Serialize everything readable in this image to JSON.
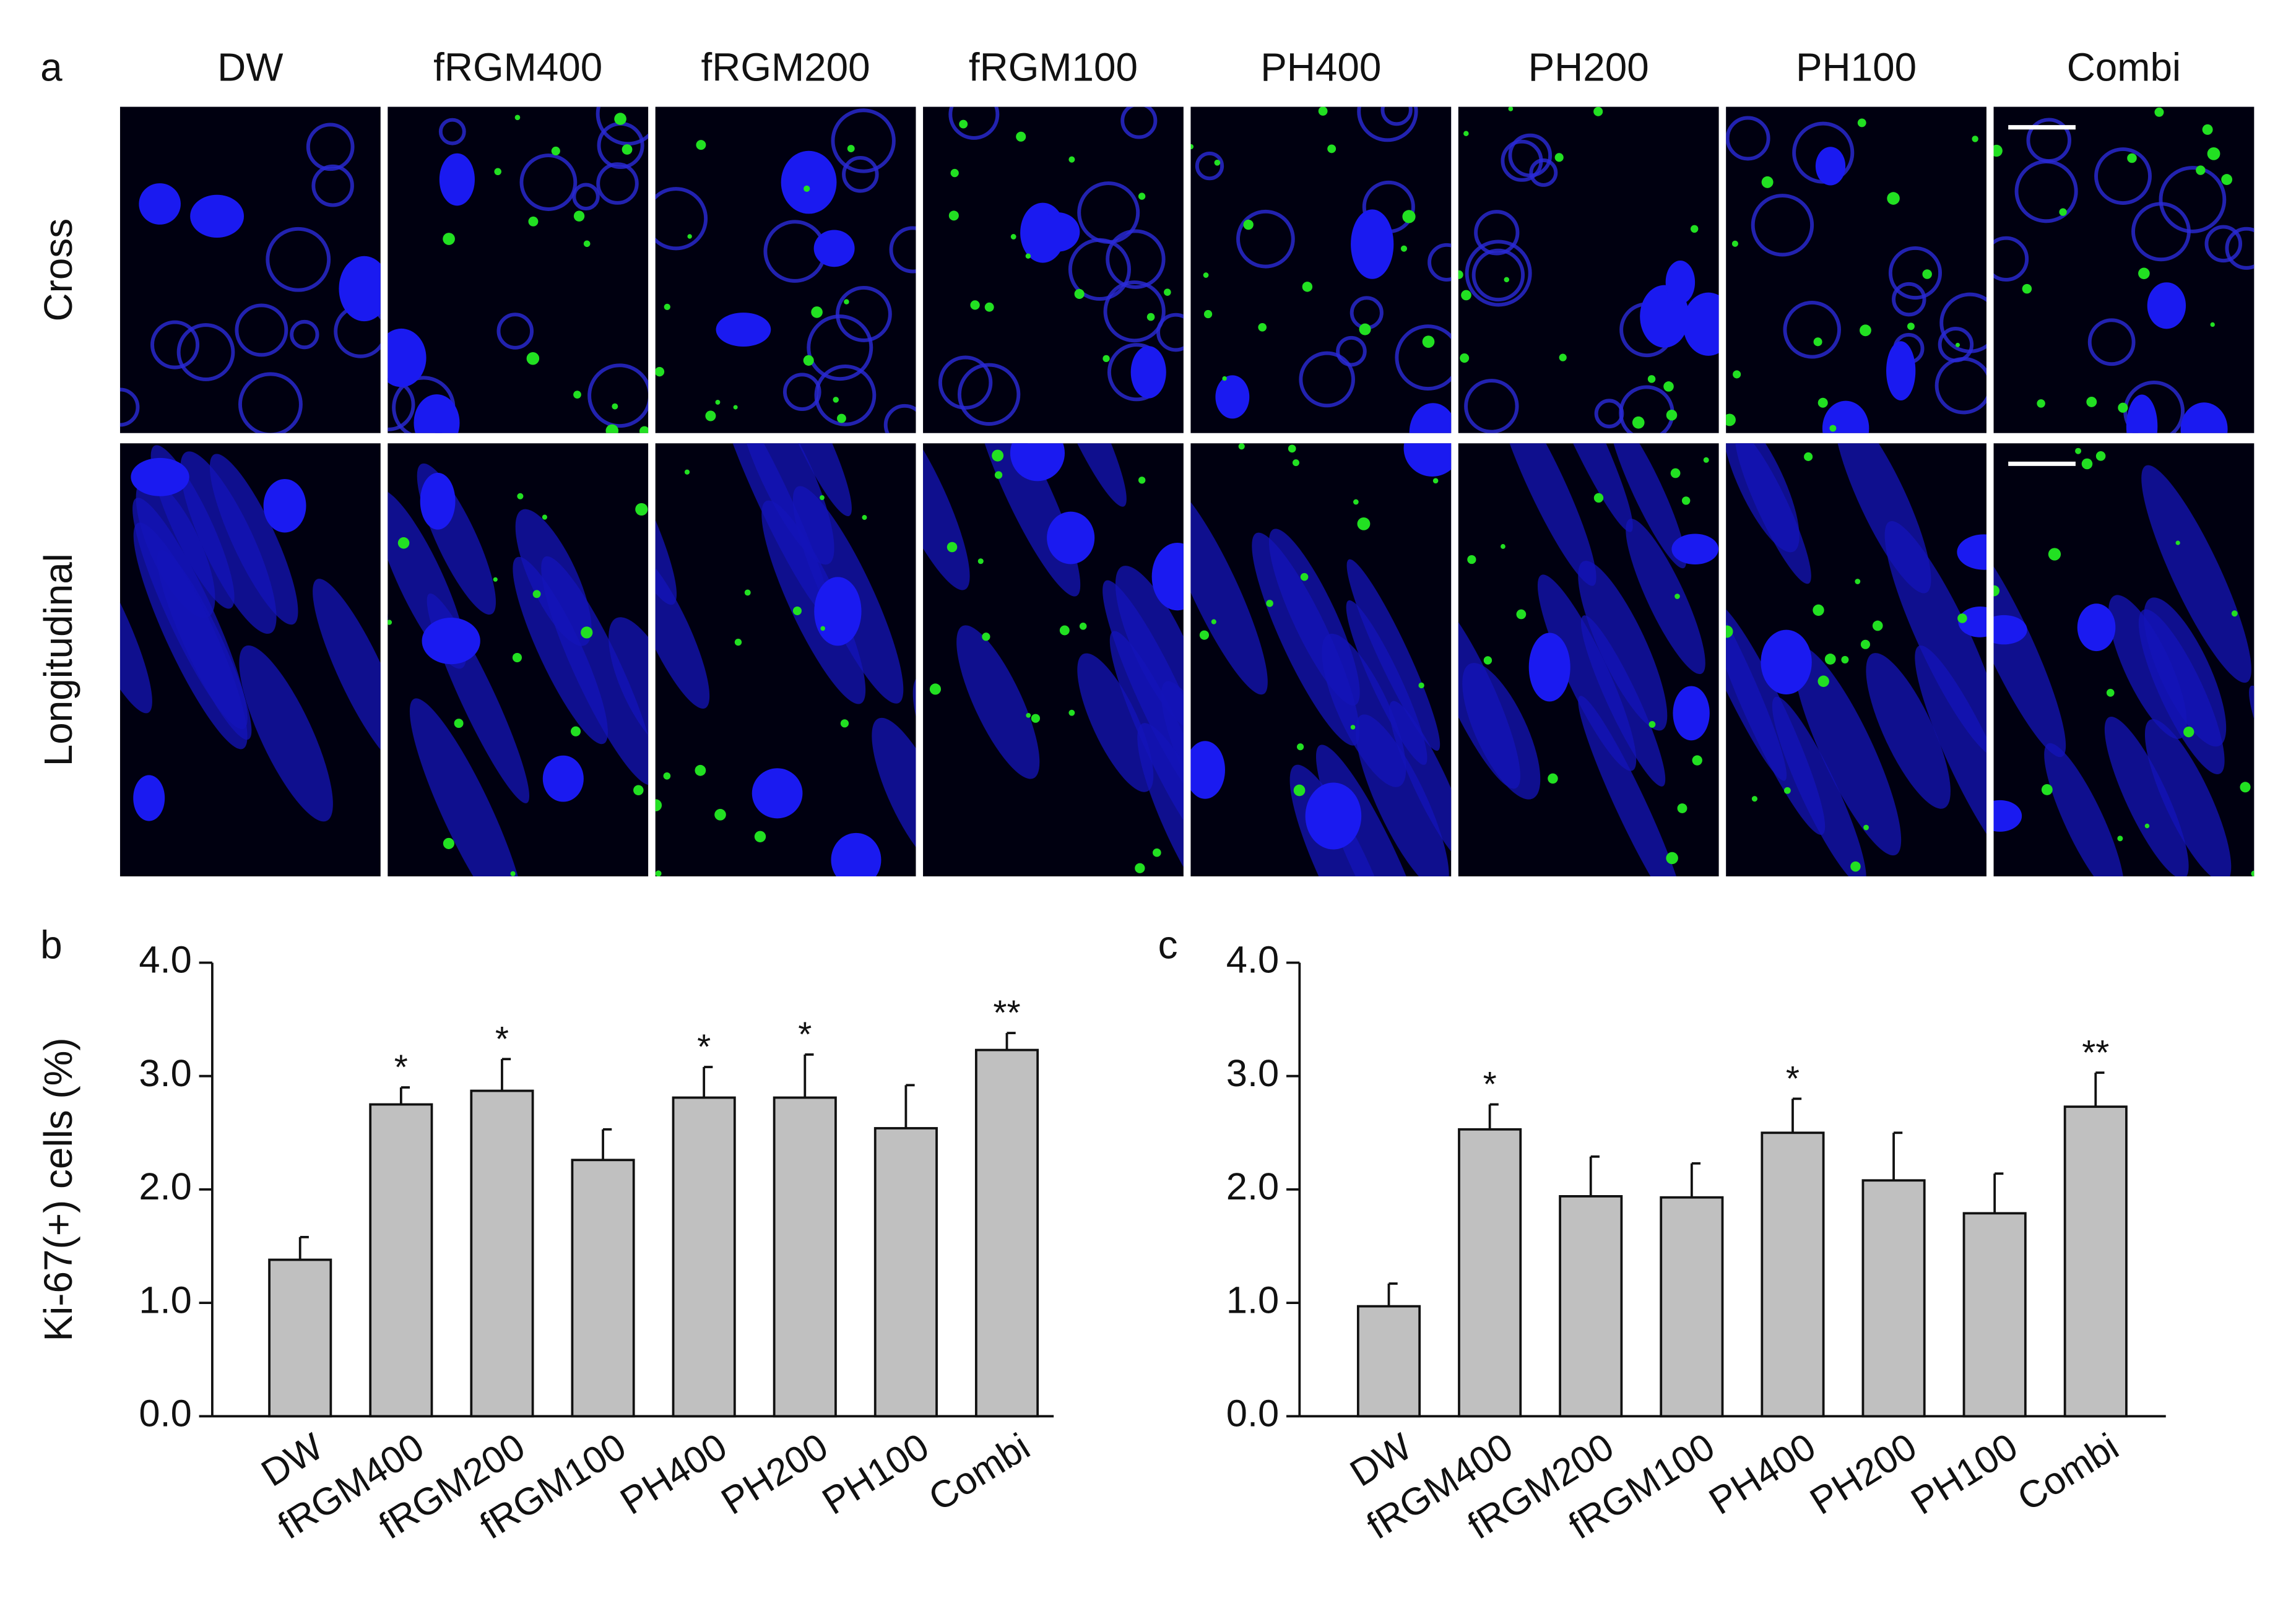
{
  "panel_a": {
    "label": "a",
    "columns": [
      "DW",
      "fRGM400",
      "fRGM200",
      "fRGM100",
      "PH400",
      "PH200",
      "PH100",
      "Combi"
    ],
    "rows": [
      "Cross",
      "Longitudinal"
    ]
  },
  "chart_data": [
    {
      "type": "bar",
      "label": "b",
      "ylabel": "Ki-67(+) cells (%)",
      "categories": [
        "DW",
        "fRGM400",
        "fRGM200",
        "fRGM100",
        "PH400",
        "PH200",
        "PH100",
        "Combi"
      ],
      "values": [
        1.38,
        2.75,
        2.87,
        2.26,
        2.81,
        2.81,
        2.54,
        3.23
      ],
      "errors": [
        0.2,
        0.15,
        0.28,
        0.27,
        0.27,
        0.38,
        0.38,
        0.15
      ],
      "annotations": [
        null,
        "*",
        "*",
        null,
        "*",
        "*",
        null,
        "**"
      ],
      "color": "#c0c0c0",
      "ylim": [
        0,
        4
      ],
      "yticks": [
        {
          "value": 0,
          "label": "0.0"
        },
        {
          "value": 1,
          "label": "1.0"
        },
        {
          "value": 2,
          "label": "2.0"
        },
        {
          "value": 3,
          "label": "3.0"
        },
        {
          "value": 4,
          "label": "4.0"
        }
      ]
    },
    {
      "type": "bar",
      "label": "c",
      "categories": [
        "DW",
        "fRGM400",
        "fRGM200",
        "fRGM100",
        "PH400",
        "PH200",
        "PH100",
        "Combi"
      ],
      "values": [
        0.97,
        2.53,
        1.94,
        1.93,
        2.5,
        2.08,
        1.79,
        2.73
      ],
      "errors": [
        0.2,
        0.22,
        0.35,
        0.3,
        0.3,
        0.42,
        0.35,
        0.3
      ],
      "annotations": [
        null,
        "*",
        null,
        null,
        "*",
        null,
        null,
        "**"
      ],
      "color": "#c0c0c0",
      "ylim": [
        0,
        4
      ],
      "yticks": [
        {
          "value": 0,
          "label": "0.0"
        },
        {
          "value": 1,
          "label": "1.0"
        },
        {
          "value": 2,
          "label": "2.0"
        },
        {
          "value": 3,
          "label": "3.0"
        },
        {
          "value": 4,
          "label": "4.0"
        }
      ]
    }
  ]
}
